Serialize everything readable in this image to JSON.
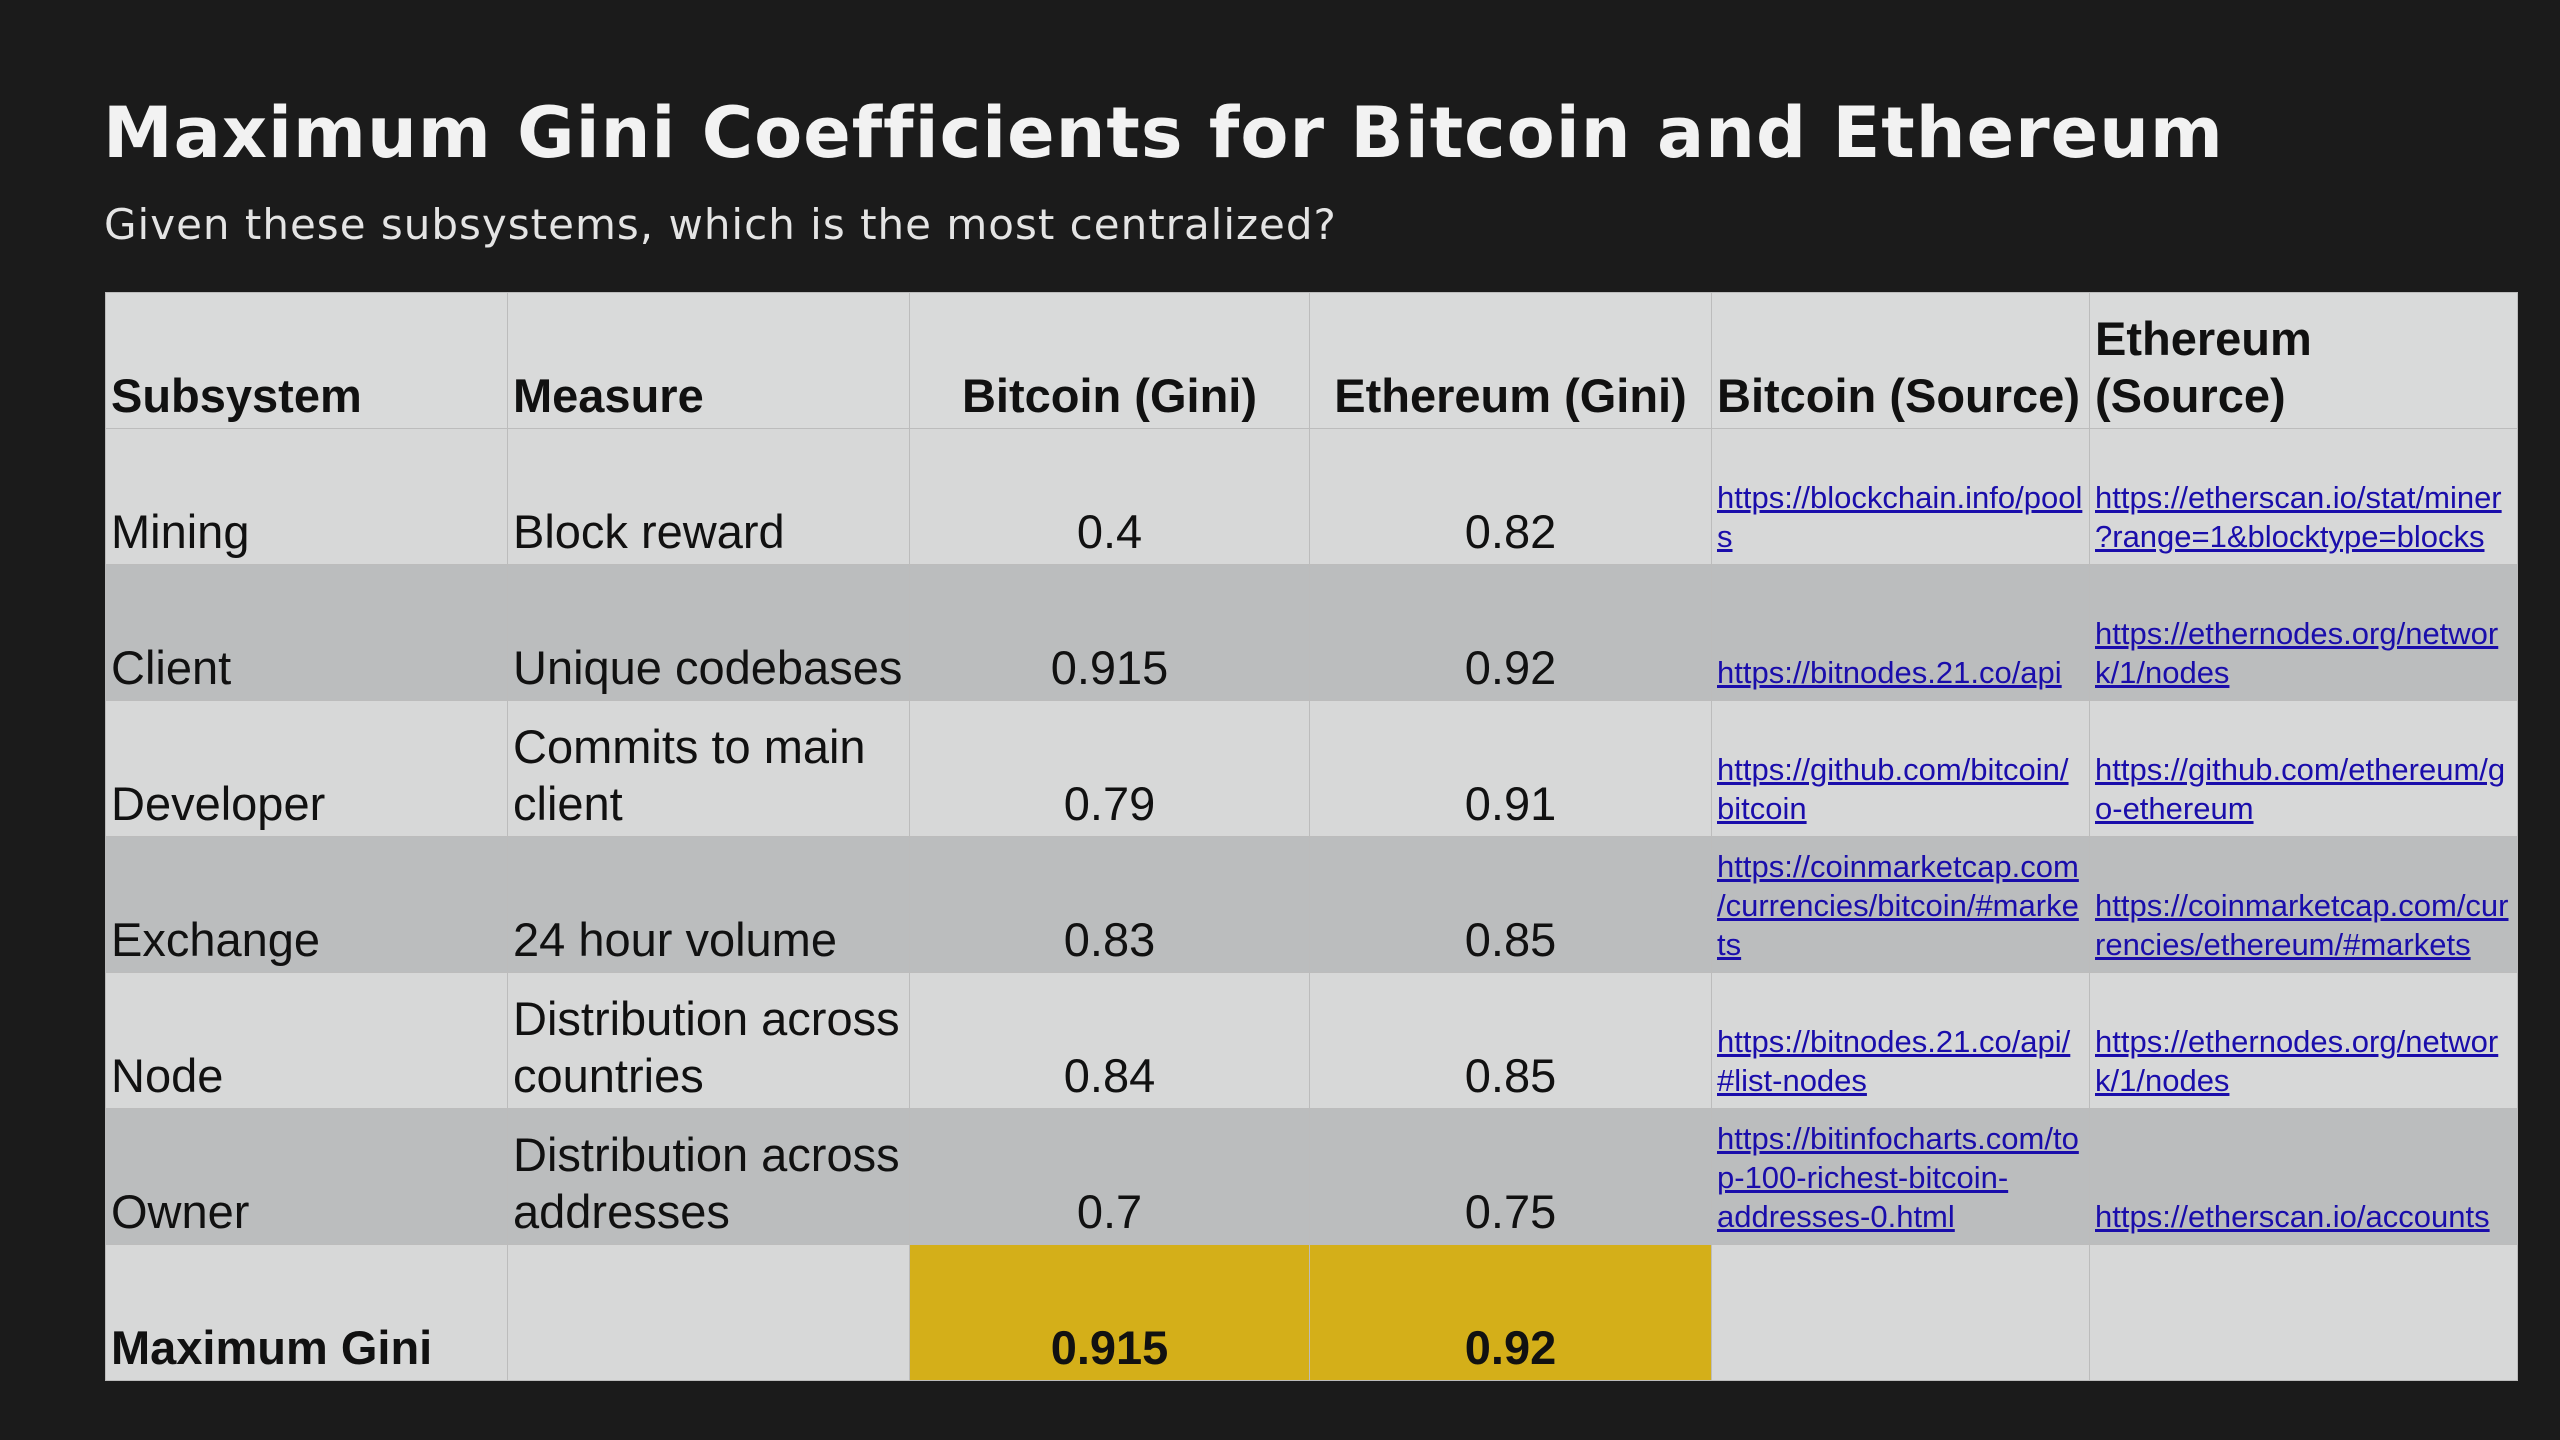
{
  "slide": {
    "title": "Maximum Gini Coefficients for Bitcoin and Ethereum",
    "subtitle": "Given these subsystems, which is the most centralized?"
  },
  "table": {
    "headers": {
      "subsystem": "Subsystem",
      "measure": "Measure",
      "bitcoin_gini": "Bitcoin (Gini)",
      "ethereum_gini": "Ethereum (Gini)",
      "bitcoin_source": "Bitcoin (Source)",
      "ethereum_source": "Ethereum (Source)"
    },
    "rows": [
      {
        "subsystem": "Mining",
        "measure": "Block reward",
        "bitcoin_gini": "0.4",
        "ethereum_gini": "0.82",
        "bitcoin_source": "https://blockchain.info/pools",
        "ethereum_source": "https://etherscan.io/stat/miner?range=1&blocktype=blocks"
      },
      {
        "subsystem": "Client",
        "measure": "Unique codebases",
        "bitcoin_gini": "0.915",
        "ethereum_gini": "0.92",
        "bitcoin_source": "https://bitnodes.21.co/api",
        "ethereum_source": "https://ethernodes.org/network/1/nodes"
      },
      {
        "subsystem": "Developer",
        "measure": "Commits to main client",
        "bitcoin_gini": "0.79",
        "ethereum_gini": "0.91",
        "bitcoin_source": "https://github.com/bitcoin/bitcoin",
        "ethereum_source": "https://github.com/ethereum/go-ethereum"
      },
      {
        "subsystem": "Exchange",
        "measure": "24 hour volume",
        "bitcoin_gini": "0.83",
        "ethereum_gini": "0.85",
        "bitcoin_source": "https://coinmarketcap.com/currencies/bitcoin/#markets",
        "ethereum_source": "https://coinmarketcap.com/currencies/ethereum/#markets"
      },
      {
        "subsystem": "Node",
        "measure": "Distribution across countries",
        "bitcoin_gini": "0.84",
        "ethereum_gini": "0.85",
        "bitcoin_source": "https://bitnodes.21.co/api/#list-nodes",
        "ethereum_source": "https://ethernodes.org/network/1/nodes"
      },
      {
        "subsystem": "Owner",
        "measure": "Distribution across addresses",
        "bitcoin_gini": "0.7",
        "ethereum_gini": "0.75",
        "bitcoin_source": "https://bitinfocharts.com/top-100-richest-bitcoin-addresses-0.html",
        "ethereum_source": "https://etherscan.io/accounts"
      }
    ],
    "total": {
      "label": "Maximum Gini",
      "bitcoin_gini": "0.915",
      "ethereum_gini": "0.92"
    }
  },
  "colors": {
    "background": "#1b1b1b",
    "row_light": "#d7d8d8",
    "row_dark": "#bbbdbe",
    "highlight": "#d4af19",
    "link": "#1a0dab"
  }
}
